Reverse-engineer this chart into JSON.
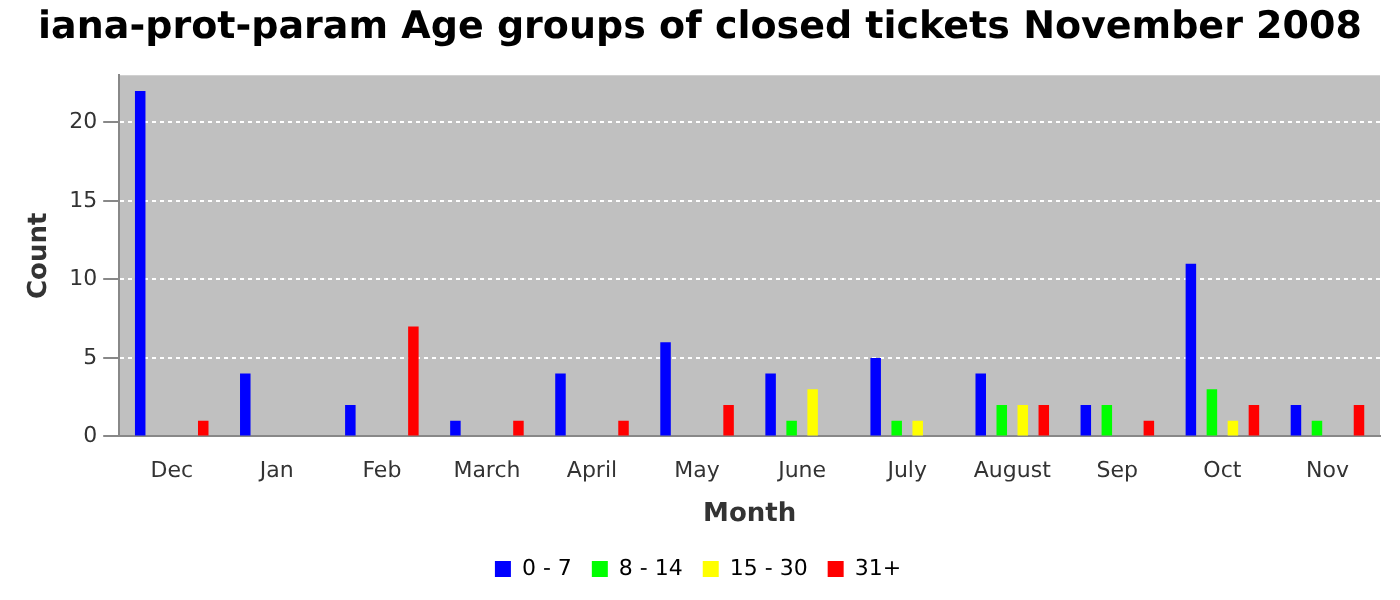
{
  "chart_data": {
    "type": "bar",
    "title": "iana-prot-param Age groups of closed tickets November 2008",
    "xlabel": "Month",
    "ylabel": "Count",
    "categories": [
      "Dec",
      "Jan",
      "Feb",
      "March",
      "April",
      "May",
      "June",
      "July",
      "August",
      "Sep",
      "Oct",
      "Nov"
    ],
    "series": [
      {
        "name": "0 - 7",
        "color": "#0000ff",
        "values": [
          22,
          4,
          2,
          1,
          4,
          6,
          4,
          5,
          4,
          2,
          11,
          2
        ]
      },
      {
        "name": "8 - 14",
        "color": "#00ff00",
        "values": [
          0,
          0,
          0,
          0,
          0,
          0,
          1,
          1,
          2,
          2,
          3,
          1
        ]
      },
      {
        "name": "15 - 30",
        "color": "#ffff00",
        "values": [
          0,
          0,
          0,
          0,
          0,
          0,
          3,
          1,
          2,
          0,
          1,
          0
        ]
      },
      {
        "name": "31+",
        "color": "#ff0000",
        "values": [
          1,
          0,
          7,
          1,
          1,
          2,
          0,
          0,
          2,
          1,
          2,
          2
        ]
      }
    ],
    "ylim": [
      0,
      23
    ],
    "yticks": [
      0,
      5,
      10,
      15,
      20
    ],
    "grid": "y",
    "legend": "bottom"
  }
}
